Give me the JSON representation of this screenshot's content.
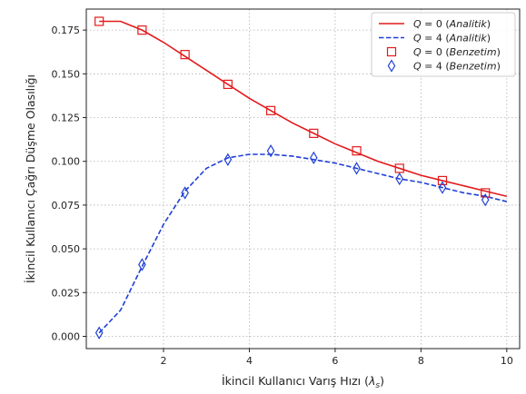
{
  "chart_data": {
    "type": "line",
    "title": "",
    "xlabel": "İkincil Kullanıcı Varış Hızı (λs)",
    "xlabel_main": "İkincil Kullanıcı Varış Hızı (",
    "xlabel_symbol": "λ",
    "xlabel_sub": "s",
    "xlabel_close": ")",
    "ylabel": "İkincil Kullanıcı Çağrı Düşme Olasılığı",
    "xlim": [
      0.2,
      10.3
    ],
    "ylim": [
      -0.007,
      0.187
    ],
    "xticks": [
      2,
      4,
      6,
      8,
      10
    ],
    "xtick_labels": [
      "2",
      "4",
      "6",
      "8",
      "10"
    ],
    "yticks": [
      0.0,
      0.025,
      0.05,
      0.075,
      0.1,
      0.125,
      0.15,
      0.175
    ],
    "ytick_labels": [
      "0.000",
      "0.025",
      "0.050",
      "0.075",
      "0.100",
      "0.125",
      "0.150",
      "0.175"
    ],
    "grid": true,
    "legend_position": "top-right",
    "series": [
      {
        "name": "Q = 0 (Analitik)",
        "name_var": "Q",
        "name_eq": " = 0 (",
        "name_it": "Analitik",
        "name_close": ")",
        "kind": "line",
        "style": "solid",
        "color": "#e31a1c",
        "x": [
          0.5,
          1.0,
          1.5,
          2.0,
          2.5,
          3.0,
          3.5,
          4.0,
          4.5,
          5.0,
          5.5,
          6.0,
          6.5,
          7.0,
          7.5,
          8.0,
          8.5,
          9.0,
          9.5,
          10.0
        ],
        "y": [
          0.18,
          0.18,
          0.175,
          0.168,
          0.16,
          0.152,
          0.144,
          0.136,
          0.129,
          0.122,
          0.116,
          0.11,
          0.105,
          0.1,
          0.096,
          0.092,
          0.089,
          0.086,
          0.083,
          0.08
        ]
      },
      {
        "name": "Q = 4 (Analitik)",
        "name_var": "Q",
        "name_eq": " = 4 (",
        "name_it": "Analitik",
        "name_close": ")",
        "kind": "line",
        "style": "dashed",
        "color": "#1f3fd6",
        "x": [
          0.5,
          1.0,
          1.5,
          2.0,
          2.5,
          3.0,
          3.5,
          4.0,
          4.5,
          5.0,
          5.5,
          6.0,
          6.5,
          7.0,
          7.5,
          8.0,
          8.5,
          9.0,
          9.5,
          10.0
        ],
        "y": [
          0.002,
          0.015,
          0.04,
          0.064,
          0.083,
          0.096,
          0.102,
          0.104,
          0.104,
          0.103,
          0.101,
          0.099,
          0.096,
          0.093,
          0.09,
          0.088,
          0.085,
          0.082,
          0.08,
          0.077
        ]
      },
      {
        "name": "Q = 0 (Benzetim)",
        "name_var": "Q",
        "name_eq": " = 0 (",
        "name_it": "Benzetim",
        "name_close": ")",
        "kind": "marker",
        "marker": "square",
        "color": "#e31a1c",
        "x": [
          0.5,
          1.5,
          2.5,
          3.5,
          4.5,
          5.5,
          6.5,
          7.5,
          8.5,
          9.5
        ],
        "y": [
          0.18,
          0.175,
          0.161,
          0.144,
          0.129,
          0.116,
          0.106,
          0.096,
          0.089,
          0.082
        ]
      },
      {
        "name": "Q = 4 (Benzetim)",
        "name_var": "Q",
        "name_eq": " = 4 (",
        "name_it": "Benzetim",
        "name_close": ")",
        "kind": "marker",
        "marker": "diamond",
        "color": "#1f3fd6",
        "x": [
          0.5,
          1.5,
          2.5,
          3.5,
          4.5,
          5.5,
          6.5,
          7.5,
          8.5,
          9.5
        ],
        "y": [
          0.002,
          0.041,
          0.082,
          0.101,
          0.106,
          0.102,
          0.096,
          0.09,
          0.085,
          0.078
        ]
      }
    ]
  }
}
